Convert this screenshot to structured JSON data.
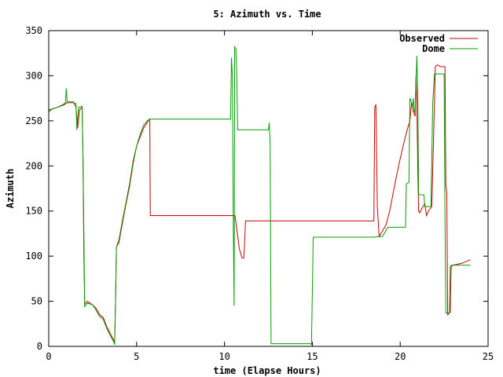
{
  "chart_data": {
    "type": "line",
    "title": "5: Azimuth vs. Time",
    "xlabel": "time (Elapse Hours)",
    "ylabel": "Azimuth",
    "xlim": [
      0,
      25
    ],
    "ylim": [
      0,
      350
    ],
    "x_ticks": [
      "0",
      "5",
      "10",
      "15",
      "20",
      "25"
    ],
    "y_ticks": [
      "0",
      "50",
      "100",
      "150",
      "200",
      "250",
      "300",
      "350"
    ],
    "grid": false,
    "legend_position": "top-right",
    "series": [
      {
        "name": "Observed",
        "color": "#cc0000",
        "points": [
          [
            0,
            262
          ],
          [
            0.5,
            265
          ],
          [
            0.9,
            268
          ],
          [
            1.1,
            271
          ],
          [
            1.4,
            271
          ],
          [
            1.55,
            265
          ],
          [
            1.65,
            242
          ],
          [
            1.75,
            262
          ],
          [
            1.9,
            265
          ],
          [
            1.95,
            210
          ],
          [
            2.0,
            100
          ],
          [
            2.05,
            47
          ],
          [
            2.2,
            50
          ],
          [
            2.5,
            46
          ],
          [
            2.7,
            42
          ],
          [
            2.9,
            35
          ],
          [
            3.1,
            32
          ],
          [
            3.3,
            22
          ],
          [
            3.5,
            14
          ],
          [
            3.7,
            7
          ],
          [
            3.75,
            3
          ],
          [
            3.8,
            50
          ],
          [
            3.85,
            110
          ],
          [
            4.0,
            118
          ],
          [
            4.2,
            140
          ],
          [
            4.4,
            160
          ],
          [
            4.6,
            180
          ],
          [
            4.8,
            205
          ],
          [
            5.0,
            222
          ],
          [
            5.2,
            232
          ],
          [
            5.4,
            242
          ],
          [
            5.6,
            248
          ],
          [
            5.7,
            251
          ],
          [
            5.75,
            252
          ],
          [
            5.78,
            145
          ],
          [
            10.5,
            145
          ],
          [
            10.6,
            145
          ],
          [
            10.85,
            108
          ],
          [
            11.0,
            98
          ],
          [
            11.1,
            98
          ],
          [
            11.15,
            115
          ],
          [
            11.2,
            139
          ],
          [
            15.0,
            139
          ],
          [
            18.5,
            139
          ],
          [
            18.55,
            265
          ],
          [
            18.62,
            268
          ],
          [
            18.7,
            155
          ],
          [
            18.8,
            122
          ],
          [
            19.0,
            128
          ],
          [
            19.2,
            135
          ],
          [
            19.4,
            150
          ],
          [
            19.6,
            170
          ],
          [
            19.8,
            190
          ],
          [
            20.0,
            208
          ],
          [
            20.2,
            225
          ],
          [
            20.4,
            240
          ],
          [
            20.55,
            250
          ],
          [
            20.65,
            270
          ],
          [
            20.75,
            260
          ],
          [
            20.85,
            255
          ],
          [
            20.9,
            300
          ],
          [
            20.95,
            270
          ],
          [
            21.0,
            195
          ],
          [
            21.05,
            150
          ],
          [
            21.1,
            148
          ],
          [
            21.3,
            155
          ],
          [
            21.4,
            158
          ],
          [
            21.5,
            145
          ],
          [
            21.6,
            150
          ],
          [
            21.8,
            155
          ],
          [
            21.95,
            270
          ],
          [
            22.0,
            310
          ],
          [
            22.1,
            312
          ],
          [
            22.3,
            310
          ],
          [
            22.5,
            310
          ],
          [
            22.55,
            310
          ],
          [
            22.6,
            178
          ],
          [
            22.65,
            170
          ],
          [
            22.7,
            35
          ],
          [
            22.85,
            38
          ],
          [
            22.9,
            88
          ],
          [
            23.0,
            90
          ],
          [
            23.5,
            92
          ],
          [
            24.0,
            96
          ]
        ]
      },
      {
        "name": "Dome",
        "color": "#00a000",
        "points": [
          [
            0,
            260
          ],
          [
            0.2,
            263
          ],
          [
            0.5,
            265
          ],
          [
            0.8,
            268
          ],
          [
            0.95,
            270
          ],
          [
            1.0,
            286
          ],
          [
            1.05,
            270
          ],
          [
            1.4,
            270
          ],
          [
            1.55,
            269
          ],
          [
            1.6,
            240
          ],
          [
            1.7,
            265
          ],
          [
            1.9,
            266
          ],
          [
            1.95,
            210
          ],
          [
            2.05,
            44
          ],
          [
            2.2,
            48
          ],
          [
            2.5,
            46
          ],
          [
            2.7,
            40
          ],
          [
            2.9,
            33
          ],
          [
            3.1,
            30
          ],
          [
            3.3,
            20
          ],
          [
            3.5,
            12
          ],
          [
            3.7,
            5
          ],
          [
            3.75,
            2
          ],
          [
            3.8,
            50
          ],
          [
            3.85,
            110
          ],
          [
            4.0,
            115
          ],
          [
            4.2,
            137
          ],
          [
            4.4,
            158
          ],
          [
            4.6,
            177
          ],
          [
            4.8,
            202
          ],
          [
            5.0,
            222
          ],
          [
            5.2,
            235
          ],
          [
            5.4,
            245
          ],
          [
            5.6,
            250
          ],
          [
            5.75,
            252
          ],
          [
            10.35,
            252
          ],
          [
            10.4,
            320
          ],
          [
            10.45,
            300
          ],
          [
            10.5,
            140
          ],
          [
            10.55,
            45
          ],
          [
            10.58,
            332
          ],
          [
            10.65,
            330
          ],
          [
            10.7,
            300
          ],
          [
            10.75,
            240
          ],
          [
            12.5,
            240
          ],
          [
            12.55,
            248
          ],
          [
            12.6,
            225
          ],
          [
            12.65,
            3
          ],
          [
            14.9,
            3
          ],
          [
            14.95,
            2
          ],
          [
            15.0,
            60
          ],
          [
            15.05,
            121
          ],
          [
            18.5,
            121
          ],
          [
            19.0,
            122
          ],
          [
            19.3,
            132
          ],
          [
            20.3,
            132
          ],
          [
            20.35,
            180
          ],
          [
            20.5,
            182
          ],
          [
            20.55,
            275
          ],
          [
            20.65,
            270
          ],
          [
            20.7,
            265
          ],
          [
            20.75,
            275
          ],
          [
            20.8,
            260
          ],
          [
            20.85,
            262
          ],
          [
            20.95,
            322
          ],
          [
            21.0,
            280
          ],
          [
            21.05,
            168
          ],
          [
            21.35,
            168
          ],
          [
            21.4,
            155
          ],
          [
            21.75,
            155
          ],
          [
            21.85,
            270
          ],
          [
            21.95,
            302
          ],
          [
            22.5,
            302
          ],
          [
            22.55,
            140
          ],
          [
            22.6,
            37
          ],
          [
            22.8,
            37
          ],
          [
            22.85,
            88
          ],
          [
            22.9,
            90
          ],
          [
            24.0,
            90
          ]
        ]
      }
    ]
  }
}
